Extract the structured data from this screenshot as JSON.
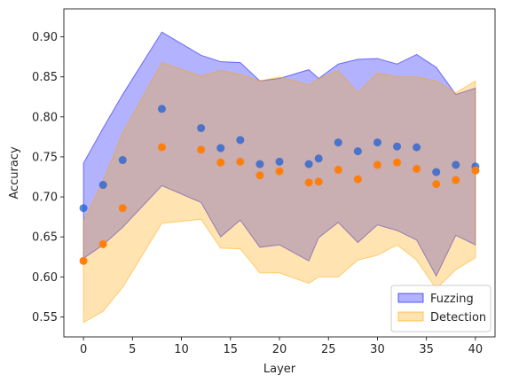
{
  "chart_data": {
    "type": "scatter",
    "title": "",
    "xlabel": "Layer",
    "ylabel": "Accuracy",
    "xlim": [
      -2,
      42
    ],
    "ylim": [
      0.525,
      0.935
    ],
    "x_ticks": [
      0,
      5,
      10,
      15,
      20,
      25,
      30,
      35,
      40
    ],
    "y_ticks": [
      0.55,
      0.6,
      0.65,
      0.7,
      0.75,
      0.8,
      0.85,
      0.9
    ],
    "grid": false,
    "legend_position": "lower-right",
    "x": [
      0,
      2,
      4,
      8,
      12,
      14,
      16,
      18,
      20,
      23,
      24,
      26,
      28,
      30,
      32,
      34,
      36,
      38,
      40
    ],
    "series": [
      {
        "name": "Fuzzing",
        "color": "#0000ff",
        "fill_color": "#0000ff",
        "fill_opacity": 0.3,
        "point_color": "#1f5fd0",
        "values": [
          0.686,
          0.715,
          0.746,
          0.81,
          0.786,
          0.761,
          0.771,
          0.741,
          0.744,
          0.741,
          0.748,
          0.768,
          0.757,
          0.768,
          0.763,
          0.762,
          0.731,
          0.74,
          0.738
        ],
        "band_upper": [
          0.742,
          0.786,
          0.828,
          0.906,
          0.877,
          0.869,
          0.868,
          0.845,
          0.848,
          0.859,
          0.848,
          0.866,
          0.872,
          0.873,
          0.866,
          0.878,
          0.862,
          0.828,
          0.836
        ],
        "band_lower": [
          0.623,
          0.64,
          0.662,
          0.714,
          0.693,
          0.65,
          0.671,
          0.637,
          0.64,
          0.62,
          0.649,
          0.668,
          0.643,
          0.665,
          0.658,
          0.646,
          0.601,
          0.652,
          0.64
        ]
      },
      {
        "name": "Detection",
        "color": "#ffa500",
        "fill_color": "#ffa500",
        "fill_opacity": 0.3,
        "point_color": "#ff7f0e",
        "values": [
          0.62,
          0.641,
          0.686,
          0.762,
          0.759,
          0.743,
          0.744,
          0.727,
          0.732,
          0.718,
          0.719,
          0.734,
          0.722,
          0.74,
          0.743,
          0.735,
          0.716,
          0.721,
          0.733
        ],
        "band_upper": [
          0.609,
          0.631,
          0.664,
          0.733,
          0.712,
          0.66,
          0.69,
          0.628,
          0.643,
          0.617,
          0.65,
          0.656,
          0.66,
          0.688,
          0.672,
          0.672,
          0.61,
          0.66,
          0.633
        ],
        "band_lower": [
          0.543,
          0.557,
          0.587,
          0.667,
          0.672,
          0.636,
          0.635,
          0.605,
          0.605,
          0.592,
          0.6,
          0.6,
          0.621,
          0.627,
          0.64,
          0.621,
          0.585,
          0.609,
          0.624
        ],
        "band_upper_top": [
          0.67,
          0.72,
          0.78,
          0.868,
          0.851,
          0.858,
          0.853,
          0.845,
          0.85,
          0.84,
          0.848,
          0.858,
          0.83,
          0.855,
          0.85,
          0.85,
          0.845,
          0.83,
          0.845
        ]
      }
    ]
  }
}
